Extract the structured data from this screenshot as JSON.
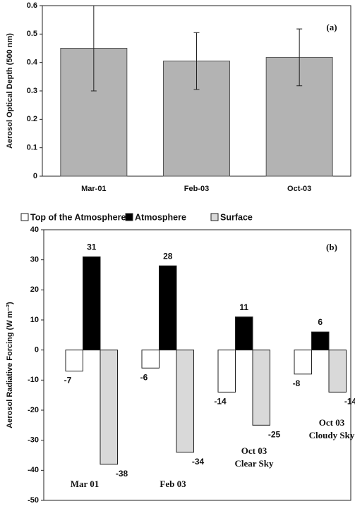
{
  "chart_data": [
    {
      "type": "bar",
      "ylabel": "Aerosol Optical Depth (500 nm)",
      "annotation": "(a)",
      "categories": [
        "Mar-01",
        "Feb-03",
        "Oct-03"
      ],
      "values": [
        0.45,
        0.405,
        0.418
      ],
      "errors": [
        0.15,
        0.1,
        0.1
      ],
      "color": "#b3b3b3",
      "ylim": [
        0,
        0.6
      ],
      "yticks": [
        0,
        0.1,
        0.2,
        0.3,
        0.4,
        0.5,
        0.6
      ]
    },
    {
      "type": "grouped_bar",
      "ylabel": "Aerosol Radiative Forcing (W m⁻²)",
      "annotation": "(b)",
      "categories": [
        [
          "Mar 01"
        ],
        [
          "Feb 03"
        ],
        [
          "Oct 03",
          "Clear Sky"
        ],
        [
          "Oct 03",
          "Cloudy Sky"
        ]
      ],
      "series": [
        {
          "name": "Top of the Atmosphere",
          "color": "#ffffff",
          "values": [
            -7,
            -6,
            -14,
            -8
          ]
        },
        {
          "name": "Atmosphere",
          "color": "#000000",
          "values": [
            31,
            28,
            11,
            6
          ]
        },
        {
          "name": "Surface",
          "color": "#d9d9d9",
          "values": [
            -38,
            -34,
            -25,
            -14
          ]
        }
      ],
      "ylim": [
        -50,
        40
      ],
      "yticks": [
        -50,
        -40,
        -30,
        -20,
        -10,
        0,
        10,
        20,
        30,
        40
      ],
      "legend": "top"
    }
  ]
}
